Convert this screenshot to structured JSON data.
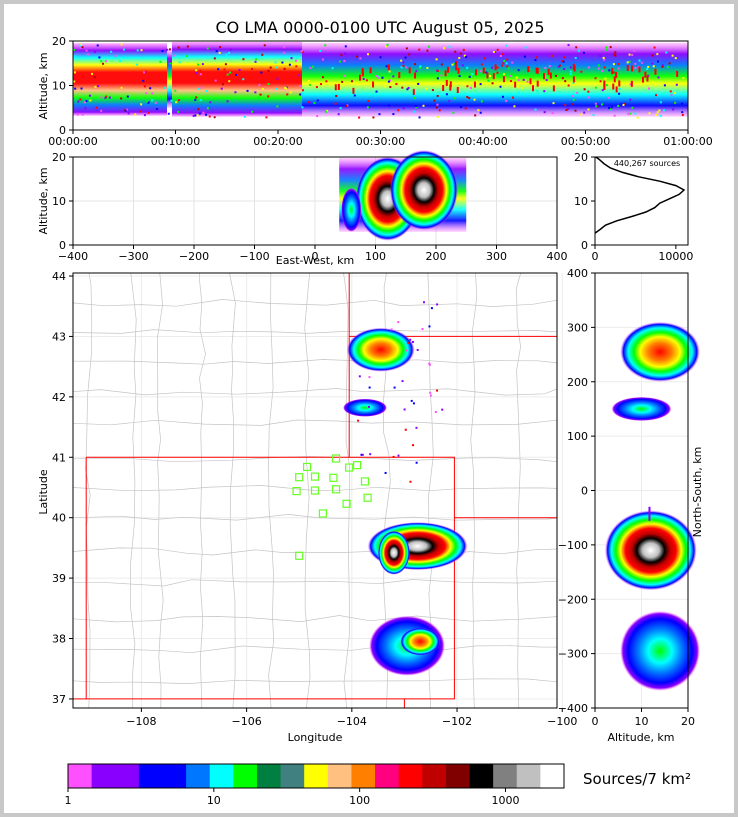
{
  "title": "CO LMA 0000-0100 UTC August 05, 2025",
  "source_count": "440,267 sources",
  "colorbar": {
    "label": "Sources/7 km²",
    "tick_labels": [
      "1",
      "10",
      "100",
      "1000"
    ],
    "colors": [
      "#ff50ff",
      "#8a00ff",
      "#8a00ff",
      "#0000ff",
      "#0000ff",
      "#0077ff",
      "#00ffff",
      "#00ff00",
      "#008040",
      "#408080",
      "#ffff00",
      "#ffc080",
      "#ff8000",
      "#ff0080",
      "#ff0000",
      "#c00000",
      "#800000",
      "#000000",
      "#808080",
      "#c0c0c0",
      "#ffffff"
    ]
  },
  "chart_data": [
    {
      "id": "time-height",
      "type": "heatmap",
      "xlabel": "",
      "ylabel": "Altitude, km",
      "x_tick_labels": [
        "00:00:00",
        "00:10:00",
        "00:20:00",
        "00:30:00",
        "00:40:00",
        "00:50:00",
        "01:00:00"
      ],
      "y_ticks": [
        0,
        10,
        20
      ],
      "ylim": [
        0,
        20
      ]
    },
    {
      "id": "ew-altitude",
      "type": "heatmap",
      "xlabel": "East-West, km",
      "ylabel": "Altitude, km",
      "x_ticks": [
        -400,
        -300,
        -200,
        -100,
        0,
        100,
        200,
        300,
        400
      ],
      "y_ticks": [
        0,
        10,
        20
      ],
      "xlim": [
        -400,
        400
      ],
      "ylim": [
        0,
        20
      ]
    },
    {
      "id": "altitude-histogram",
      "type": "line",
      "x_ticks": [
        0,
        10000
      ],
      "y_ticks": [
        0,
        10,
        20
      ],
      "xlim": [
        0,
        11500
      ],
      "ylim": [
        0,
        20
      ],
      "y": [
        2.7,
        3.5,
        4.5,
        5.5,
        6.5,
        7.5,
        8.5,
        9.5,
        10.5,
        11.5,
        12.5,
        13.5,
        14.5,
        15.5,
        16.5,
        17.5,
        18.5,
        19.5,
        20.5
      ],
      "x": [
        0,
        600,
        1300,
        2700,
        4600,
        6300,
        7400,
        8000,
        9200,
        10400,
        11000,
        10000,
        8000,
        5400,
        3400,
        1900,
        1100,
        500,
        100
      ]
    },
    {
      "id": "plan-view",
      "type": "heatmap",
      "xlabel": "Longitude",
      "ylabel": "Latitude",
      "x_tick_labels": [
        "−108",
        "−106",
        "−104",
        "−102",
        "−100"
      ],
      "x_ticks": [
        -108,
        -106,
        -104,
        -102,
        -100
      ],
      "y_ticks": [
        37,
        38,
        39,
        40,
        41,
        42,
        43,
        44
      ],
      "xlim": [
        -109.3,
        -100.1
      ],
      "ylim": [
        36.85,
        44.05
      ],
      "stations": [
        [
          -104.85,
          40.84
        ],
        [
          -105.0,
          40.67
        ],
        [
          -104.7,
          40.68
        ],
        [
          -104.35,
          40.66
        ],
        [
          -104.05,
          40.83
        ],
        [
          -103.9,
          40.87
        ],
        [
          -103.75,
          40.6
        ],
        [
          -105.05,
          40.44
        ],
        [
          -104.7,
          40.45
        ],
        [
          -104.3,
          40.47
        ],
        [
          -103.7,
          40.33
        ],
        [
          -104.1,
          40.23
        ],
        [
          -104.55,
          40.07
        ],
        [
          -105.0,
          39.37
        ],
        [
          -104.3,
          40.98
        ]
      ]
    },
    {
      "id": "ns-altitude",
      "type": "heatmap",
      "xlabel": "Altitude, km",
      "ylabel": "North-South, km",
      "x_ticks": [
        0,
        10,
        20
      ],
      "y_ticks": [
        -400,
        -300,
        -200,
        -100,
        0,
        100,
        200,
        300,
        400
      ],
      "xlim": [
        0,
        20
      ],
      "ylim": [
        -400,
        400
      ]
    }
  ]
}
